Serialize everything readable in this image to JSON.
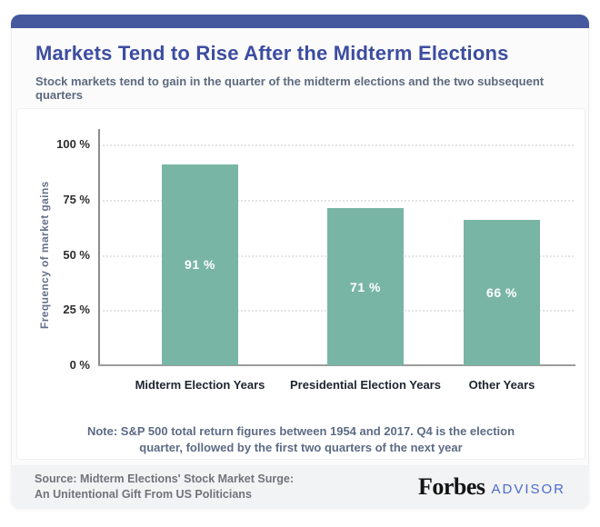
{
  "header": {
    "title": "Markets Tend to Rise After the Midterm Elections",
    "subtitle": "Stock markets tend to gain in the quarter of the midterm elections and the two subsequent quarters"
  },
  "chart_data": {
    "type": "bar",
    "title": "Markets Tend to Rise After the Midterm Elections",
    "categories": [
      "Midterm Election Years",
      "Presidential Election Years",
      "Other Years"
    ],
    "values": [
      91,
      71,
      66
    ],
    "bar_labels": [
      "91 %",
      "71 %",
      "66 %"
    ],
    "xlabel": "",
    "ylabel": "Frequency of market gains",
    "ylim": [
      0,
      100
    ],
    "yticks": [
      {
        "label": "0 %",
        "value": 0
      },
      {
        "label": "25 %",
        "value": 25
      },
      {
        "label": "50 %",
        "value": 50
      },
      {
        "label": "75 %",
        "value": 75
      },
      {
        "label": "100 %",
        "value": 100
      }
    ],
    "grid": "horizontal-dotted",
    "legend": "none",
    "bar_color": "#79b5a5",
    "bar_label_color": "#ffffff"
  },
  "note": {
    "line1": "Note: S&P 500 total return figures between 1954 and 2017. Q4 is the election",
    "line2": "quarter, followed by the first two quarters of the next year"
  },
  "footer": {
    "source_line1": "Source: Midterm Elections' Stock Market Surge:",
    "source_line2": "An Unitentional Gift From US Politicians",
    "brand": "Forbes",
    "brand_suffix": "ADVISOR"
  },
  "colors": {
    "accent_bar": "#46589e",
    "title": "#3c4da0",
    "subtitle": "#5d6a7e",
    "bar_fill": "#79b5a5",
    "note_text": "#5c6b85",
    "footer_bg": "#f2f3f4",
    "advisor_blue": "#4a6bc9"
  }
}
